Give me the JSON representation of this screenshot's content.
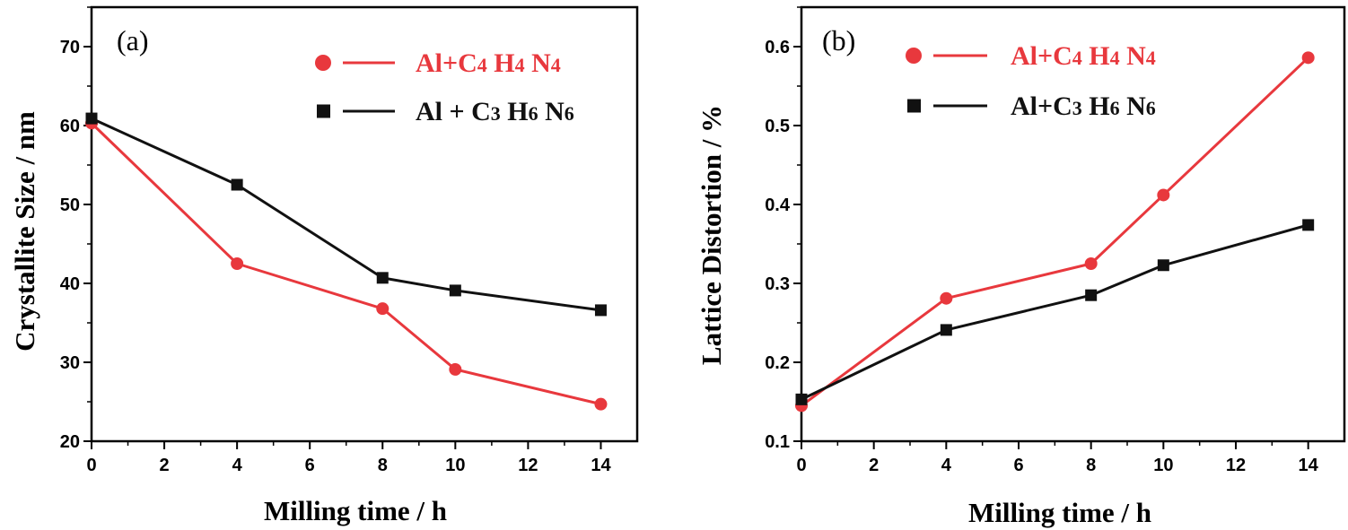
{
  "chart_data": [
    {
      "type": "line",
      "panel_label": "(a)",
      "title": "",
      "xlabel": "Milling  time / h",
      "ylabel": "Crystallite Size  / nm",
      "xlim": [
        0,
        15
      ],
      "ylim": [
        20,
        75
      ],
      "xticks": [
        0,
        2,
        4,
        6,
        8,
        10,
        12,
        14
      ],
      "yticks": [
        20,
        30,
        40,
        50,
        60,
        70
      ],
      "xtick_labels": [
        "0",
        "2",
        "4",
        "6",
        "8",
        "10",
        "12",
        "14"
      ],
      "ytick_labels": [
        "20",
        "30",
        "40",
        "50",
        "60",
        "70"
      ],
      "legend_position": "top-right",
      "series": [
        {
          "name": "Al+C4 H4 N4",
          "legend_parts": [
            {
              "t": "Al+C",
              "sub": false
            },
            {
              "t": "4",
              "sub": true
            },
            {
              "t": " H",
              "sub": false
            },
            {
              "t": "4",
              "sub": true
            },
            {
              "t": " N",
              "sub": false
            },
            {
              "t": "4",
              "sub": true
            }
          ],
          "color": "#e8383d",
          "marker": "circle",
          "x": [
            0,
            4,
            8,
            10,
            14
          ],
          "y": [
            60.3,
            42.5,
            36.8,
            29.1,
            24.7
          ]
        },
        {
          "name": "Al + C3 H6 N6",
          "legend_parts": [
            {
              "t": "Al + C",
              "sub": false
            },
            {
              "t": "3",
              "sub": true
            },
            {
              "t": " H",
              "sub": false
            },
            {
              "t": "6",
              "sub": true
            },
            {
              "t": " N",
              "sub": false
            },
            {
              "t": "6",
              "sub": true
            }
          ],
          "color": "#111111",
          "marker": "square",
          "x": [
            0,
            4,
            8,
            10,
            14
          ],
          "y": [
            60.9,
            52.5,
            40.7,
            39.1,
            36.6
          ]
        }
      ]
    },
    {
      "type": "line",
      "panel_label": "(b)",
      "title": "",
      "xlabel": "Milling  time / h",
      "ylabel": "Lattice Distortion / %",
      "xlim": [
        0,
        15
      ],
      "ylim": [
        0.1,
        0.65
      ],
      "xticks": [
        0,
        2,
        4,
        6,
        8,
        10,
        12,
        14
      ],
      "yticks": [
        0.1,
        0.2,
        0.3,
        0.4,
        0.5,
        0.6
      ],
      "xtick_labels": [
        "0",
        "2",
        "4",
        "6",
        "8",
        "10",
        "12",
        "14"
      ],
      "ytick_labels": [
        "0.1",
        "0.2",
        "0.3",
        "0.4",
        "0.5",
        "0.6"
      ],
      "legend_position": "top-right",
      "series": [
        {
          "name": "Al+C4 H4 N4",
          "legend_parts": [
            {
              "t": "Al+C",
              "sub": false
            },
            {
              "t": "4",
              "sub": true
            },
            {
              "t": " H",
              "sub": false
            },
            {
              "t": "4",
              "sub": true
            },
            {
              "t": " N",
              "sub": false
            },
            {
              "t": "4",
              "sub": true
            }
          ],
          "color": "#e8383d",
          "marker": "circle",
          "x": [
            0,
            4,
            8,
            10,
            14
          ],
          "y": [
            0.145,
            0.281,
            0.325,
            0.412,
            0.586
          ]
        },
        {
          "name": "Al+C3 H6 N6",
          "legend_parts": [
            {
              "t": "Al+C",
              "sub": false
            },
            {
              "t": "3",
              "sub": true
            },
            {
              "t": " H",
              "sub": false
            },
            {
              "t": "6",
              "sub": true
            },
            {
              "t": " N",
              "sub": false
            },
            {
              "t": "6",
              "sub": true
            }
          ],
          "color": "#111111",
          "marker": "square",
          "x": [
            0,
            4,
            8,
            10,
            14
          ],
          "y": [
            0.153,
            0.241,
            0.285,
            0.323,
            0.374
          ]
        }
      ]
    }
  ]
}
